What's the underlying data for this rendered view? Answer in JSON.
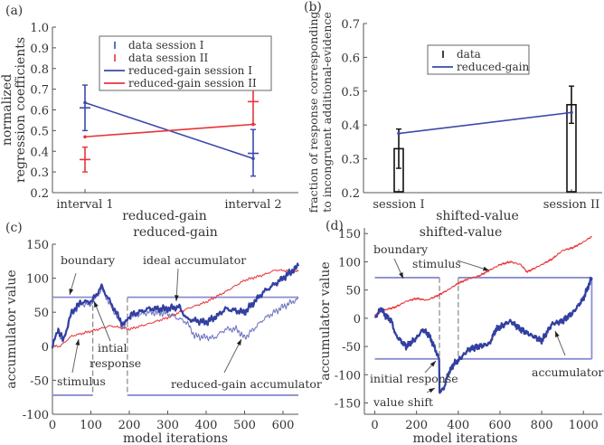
{
  "chart_data": [
    {
      "panel": "(a)",
      "type": "line",
      "title": "",
      "xlabel": "reduced-gain",
      "ylabel": [
        "normalized",
        "regression coefficients"
      ],
      "categories": [
        "interval 1",
        "interval 2"
      ],
      "ylim": [
        0.2,
        1.0
      ],
      "yticks": [
        "0.2",
        "0.3",
        "0.4",
        "0.5",
        "0.6",
        "0.7",
        "0.8",
        "0.9",
        "1.0"
      ],
      "series": [
        {
          "name": "data session I",
          "kind": "errorbar",
          "color": "#3a4aa8",
          "values": [
            0.61,
            0.39
          ],
          "lo": [
            0.5,
            0.28
          ],
          "hi": [
            0.72,
            0.505
          ]
        },
        {
          "name": "data session II",
          "kind": "errorbar",
          "color": "#e8343a",
          "values": [
            0.36,
            0.64
          ],
          "lo": [
            0.3,
            0.53
          ],
          "hi": [
            0.42,
            0.75
          ]
        },
        {
          "name": "reduced-gain session I",
          "kind": "line",
          "color": "#3a4aa8",
          "values": [
            0.635,
            0.365
          ]
        },
        {
          "name": "reduced-gain session II",
          "kind": "line",
          "color": "#e8343a",
          "values": [
            0.47,
            0.53
          ]
        }
      ],
      "legend": "top-center"
    },
    {
      "panel": "(b)",
      "type": "bar",
      "title": "",
      "xlabel": "shifted-value",
      "ylabel": [
        "fraction of response corresponding",
        "to incongruent additional-evidence"
      ],
      "categories": [
        "session I",
        "session II"
      ],
      "ylim": [
        0.2,
        0.7
      ],
      "yticks": [
        "0.2",
        "0.3",
        "0.4",
        "0.5",
        "0.6",
        "0.7"
      ],
      "series": [
        {
          "name": "data",
          "kind": "bar",
          "color": "#111111",
          "values": [
            0.33,
            0.46
          ],
          "lo": [
            0.272,
            0.405
          ],
          "hi": [
            0.388,
            0.515
          ]
        },
        {
          "name": "reduced-gain",
          "kind": "line",
          "color": "#3a4aa8",
          "values": [
            0.375,
            0.437
          ]
        }
      ],
      "legend": "top-center"
    },
    {
      "panel": "(c)",
      "type": "line",
      "title": "reduced-gain",
      "xlabel": "model iterations",
      "ylabel": "accumulator value",
      "xlim": [
        0,
        640
      ],
      "ylim": [
        -100,
        150
      ],
      "xticks": [
        0,
        100,
        200,
        300,
        400,
        500,
        600
      ],
      "yticks": [
        -100,
        -50,
        0,
        50,
        100,
        150
      ],
      "boundary": {
        "value": 72,
        "segments": [
          [
            0,
            105
          ],
          [
            195,
            640
          ]
        ],
        "dashed_x": [
          105,
          195
        ]
      },
      "series": [
        {
          "name": "stimulus",
          "color": "#e8343a",
          "width": 1,
          "noise": 1.5,
          "points": [
            [
              0,
              0
            ],
            [
              20,
              0
            ],
            [
              50,
              15
            ],
            [
              100,
              22
            ],
            [
              150,
              30
            ],
            [
              200,
              25
            ],
            [
              250,
              33
            ],
            [
              300,
              42
            ],
            [
              350,
              55
            ],
            [
              400,
              65
            ],
            [
              450,
              80
            ],
            [
              500,
              97
            ],
            [
              550,
              105
            ],
            [
              580,
              112
            ],
            [
              640,
              110
            ]
          ]
        },
        {
          "name": "reduced-gain accumulator",
          "color": "#6a70c0",
          "width": 1,
          "noise": 4,
          "points": [
            [
              0,
              0
            ],
            [
              15,
              23
            ],
            [
              28,
              7
            ],
            [
              50,
              48
            ],
            [
              75,
              62
            ],
            [
              100,
              62
            ],
            [
              110,
              68
            ],
            [
              128,
              84
            ],
            [
              150,
              62
            ],
            [
              185,
              28
            ],
            [
              200,
              42
            ],
            [
              250,
              50
            ],
            [
              300,
              48
            ],
            [
              350,
              35
            ],
            [
              370,
              15
            ],
            [
              420,
              12
            ],
            [
              450,
              25
            ],
            [
              480,
              25
            ],
            [
              500,
              12
            ],
            [
              550,
              40
            ],
            [
              600,
              58
            ],
            [
              640,
              70
            ]
          ]
        },
        {
          "name": "ideal accumulator",
          "color": "#3240a0",
          "width": 2.2,
          "noise": 4,
          "points": [
            [
              0,
              0
            ],
            [
              15,
              25
            ],
            [
              28,
              8
            ],
            [
              50,
              50
            ],
            [
              75,
              65
            ],
            [
              100,
              65
            ],
            [
              110,
              72
            ],
            [
              128,
              88
            ],
            [
              150,
              65
            ],
            [
              185,
              30
            ],
            [
              200,
              45
            ],
            [
              250,
              55
            ],
            [
              300,
              55
            ],
            [
              330,
              58
            ],
            [
              350,
              40
            ],
            [
              400,
              35
            ],
            [
              430,
              45
            ],
            [
              450,
              55
            ],
            [
              500,
              50
            ],
            [
              550,
              80
            ],
            [
              600,
              100
            ],
            [
              640,
              118
            ]
          ]
        }
      ],
      "annotations": [
        "boundary",
        "ideal accumulator",
        "intial",
        "response",
        "stimulus",
        "reduced-gain accumulator"
      ]
    },
    {
      "panel": "(d)",
      "type": "line",
      "title": "shifted-value",
      "xlabel": "model iterations",
      "ylabel": "accumulator value",
      "xlim": [
        -50,
        1090
      ],
      "ylim": [
        -170,
        160
      ],
      "xticks": [
        0,
        200,
        400,
        600,
        800,
        1000
      ],
      "yticks": [
        -150,
        -100,
        -50,
        0,
        50,
        100,
        150
      ],
      "boundary": {
        "value": 72,
        "segments": [
          [
            0,
            310
          ],
          [
            400,
            1040
          ]
        ],
        "dashed_x": [
          310,
          400
        ]
      },
      "series": [
        {
          "name": "stimulus",
          "color": "#e8343a",
          "width": 1,
          "noise": 1.5,
          "points": [
            [
              0,
              5
            ],
            [
              50,
              15
            ],
            [
              100,
              20
            ],
            [
              150,
              30
            ],
            [
              200,
              35
            ],
            [
              250,
              32
            ],
            [
              300,
              40
            ],
            [
              350,
              50
            ],
            [
              400,
              62
            ],
            [
              450,
              70
            ],
            [
              500,
              75
            ],
            [
              550,
              85
            ],
            [
              600,
              95
            ],
            [
              650,
              100
            ],
            [
              700,
              95
            ],
            [
              730,
              82
            ],
            [
              800,
              95
            ],
            [
              850,
              105
            ],
            [
              900,
              120
            ],
            [
              950,
              125
            ],
            [
              1000,
              135
            ],
            [
              1040,
              145
            ]
          ]
        },
        {
          "name": "accumulator",
          "color": "#3240a0",
          "width": 2.2,
          "noise": 4,
          "points": [
            [
              0,
              0
            ],
            [
              30,
              18
            ],
            [
              50,
              5
            ],
            [
              80,
              -5
            ],
            [
              100,
              -30
            ],
            [
              150,
              -50
            ],
            [
              200,
              -35
            ],
            [
              230,
              -20
            ],
            [
              260,
              -30
            ],
            [
              290,
              -55
            ],
            [
              310,
              -75
            ],
            [
              310,
              -130
            ],
            [
              330,
              -125
            ],
            [
              350,
              -100
            ],
            [
              380,
              -80
            ],
            [
              400,
              -75
            ],
            [
              450,
              -55
            ],
            [
              500,
              -50
            ],
            [
              550,
              -45
            ],
            [
              580,
              -20
            ],
            [
              650,
              -5
            ],
            [
              700,
              -20
            ],
            [
              750,
              -30
            ],
            [
              800,
              -40
            ],
            [
              850,
              -10
            ],
            [
              900,
              -5
            ],
            [
              950,
              10
            ],
            [
              1000,
              35
            ],
            [
              1040,
              72
            ]
          ]
        }
      ],
      "annotations": [
        "boundary",
        "stimulus",
        "initial response",
        "value shift",
        "accumulator"
      ]
    }
  ]
}
